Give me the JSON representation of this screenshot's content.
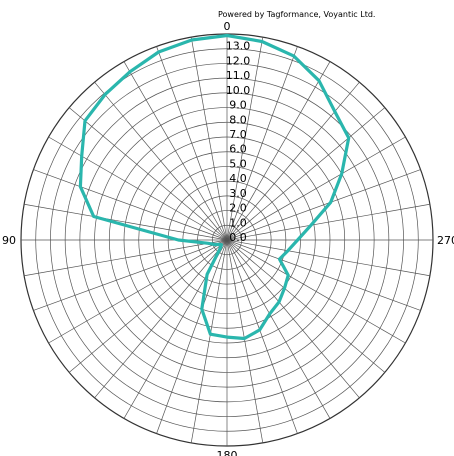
{
  "credit": "Powered by Tagformance, Voyantic Ltd.",
  "chart_data": {
    "type": "polar-line",
    "radial_ticks": [
      "0.0",
      "1.0",
      "2.0",
      "3.0",
      "4.0",
      "5.0",
      "6.0",
      "7.0",
      "8.0",
      "9.0",
      "10.0",
      "11.0",
      "12.0",
      "13.0"
    ],
    "angle_labels": [
      {
        "deg": 0,
        "text": "0"
      },
      {
        "deg": 90,
        "text": "90"
      },
      {
        "deg": 180,
        "text": "180"
      },
      {
        "deg": 270,
        "text": "270"
      }
    ],
    "angle_direction": "counterclockwise",
    "zero_at": "top",
    "rmax": 14,
    "spoke_step_deg": 10,
    "ring_step": 1,
    "grid": true,
    "series": [
      {
        "color": "#2ab6ad",
        "points": [
          {
            "angle": 0,
            "r": 13.9
          },
          {
            "angle": 10,
            "r": 13.8
          },
          {
            "angle": 20,
            "r": 13.6
          },
          {
            "angle": 30,
            "r": 13.2
          },
          {
            "angle": 40,
            "r": 12.9
          },
          {
            "angle": 50,
            "r": 12.6
          },
          {
            "angle": 60,
            "r": 11.4
          },
          {
            "angle": 70,
            "r": 10.6
          },
          {
            "angle": 80,
            "r": 9.2
          },
          {
            "angle": 90,
            "r": 3.3
          },
          {
            "angle": 100,
            "r": 1.3
          },
          {
            "angle": 110,
            "r": 0.9
          },
          {
            "angle": 120,
            "r": 0.6
          },
          {
            "angle": 130,
            "r": 0.5
          },
          {
            "angle": 140,
            "r": 0.7
          },
          {
            "angle": 150,
            "r": 2.7
          },
          {
            "angle": 160,
            "r": 5.0
          },
          {
            "angle": 170,
            "r": 6.5
          },
          {
            "angle": 180,
            "r": 6.6
          },
          {
            "angle": 190,
            "r": 6.8
          },
          {
            "angle": 200,
            "r": 6.5
          },
          {
            "angle": 210,
            "r": 5.8
          },
          {
            "angle": 220,
            "r": 5.5
          },
          {
            "angle": 230,
            "r": 5.1
          },
          {
            "angle": 240,
            "r": 4.8
          },
          {
            "angle": 250,
            "r": 3.8
          },
          {
            "angle": 260,
            "r": 4.2
          },
          {
            "angle": 270,
            "r": 4.8
          },
          {
            "angle": 280,
            "r": 5.8
          },
          {
            "angle": 290,
            "r": 7.5
          },
          {
            "angle": 300,
            "r": 9.0
          },
          {
            "angle": 310,
            "r": 10.8
          },
          {
            "angle": 320,
            "r": 11.4
          },
          {
            "angle": 330,
            "r": 12.5
          },
          {
            "angle": 340,
            "r": 13.3
          },
          {
            "angle": 350,
            "r": 13.7
          }
        ]
      }
    ]
  }
}
